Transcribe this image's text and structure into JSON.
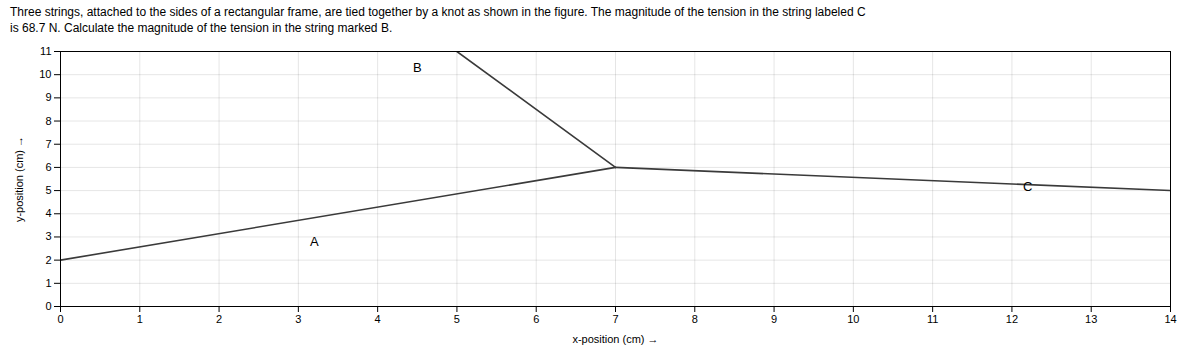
{
  "chart_data": {
    "type": "line",
    "title": "Three strings, attached to the sides of a rectangular frame, are tied together by a knot as shown in the figure. The magnitude of the tension in the string labeled C",
    "subtitle": "is 68.7 N. Calculate the magnitude of the tension in the string marked B.",
    "xlabel": "x-position (cm)",
    "ylabel": "y-position (cm)",
    "xlim": [
      0,
      14
    ],
    "ylim": [
      0,
      11
    ],
    "xticks": [
      0,
      1,
      2,
      3,
      4,
      5,
      6,
      7,
      8,
      9,
      10,
      11,
      12,
      13,
      14
    ],
    "yticks": [
      0,
      1,
      2,
      3,
      4,
      5,
      6,
      7,
      8,
      9,
      10,
      11
    ],
    "grid": true,
    "series": [
      {
        "x": [
          0,
          7
        ],
        "values": [
          2,
          6
        ],
        "color": "#3a3a3a"
      },
      {
        "x": [
          5,
          7
        ],
        "values": [
          11,
          6
        ],
        "color": "#3a3a3a"
      },
      {
        "x": [
          7,
          14
        ],
        "values": [
          6,
          5
        ],
        "color": "#3a3a3a"
      }
    ],
    "annotations": [
      {
        "x": 3.2,
        "y": 2.8,
        "text": "A"
      },
      {
        "x": 4.5,
        "y": 10.3,
        "text": "B"
      },
      {
        "x": 12.2,
        "y": 5.15,
        "text": "C"
      }
    ]
  }
}
